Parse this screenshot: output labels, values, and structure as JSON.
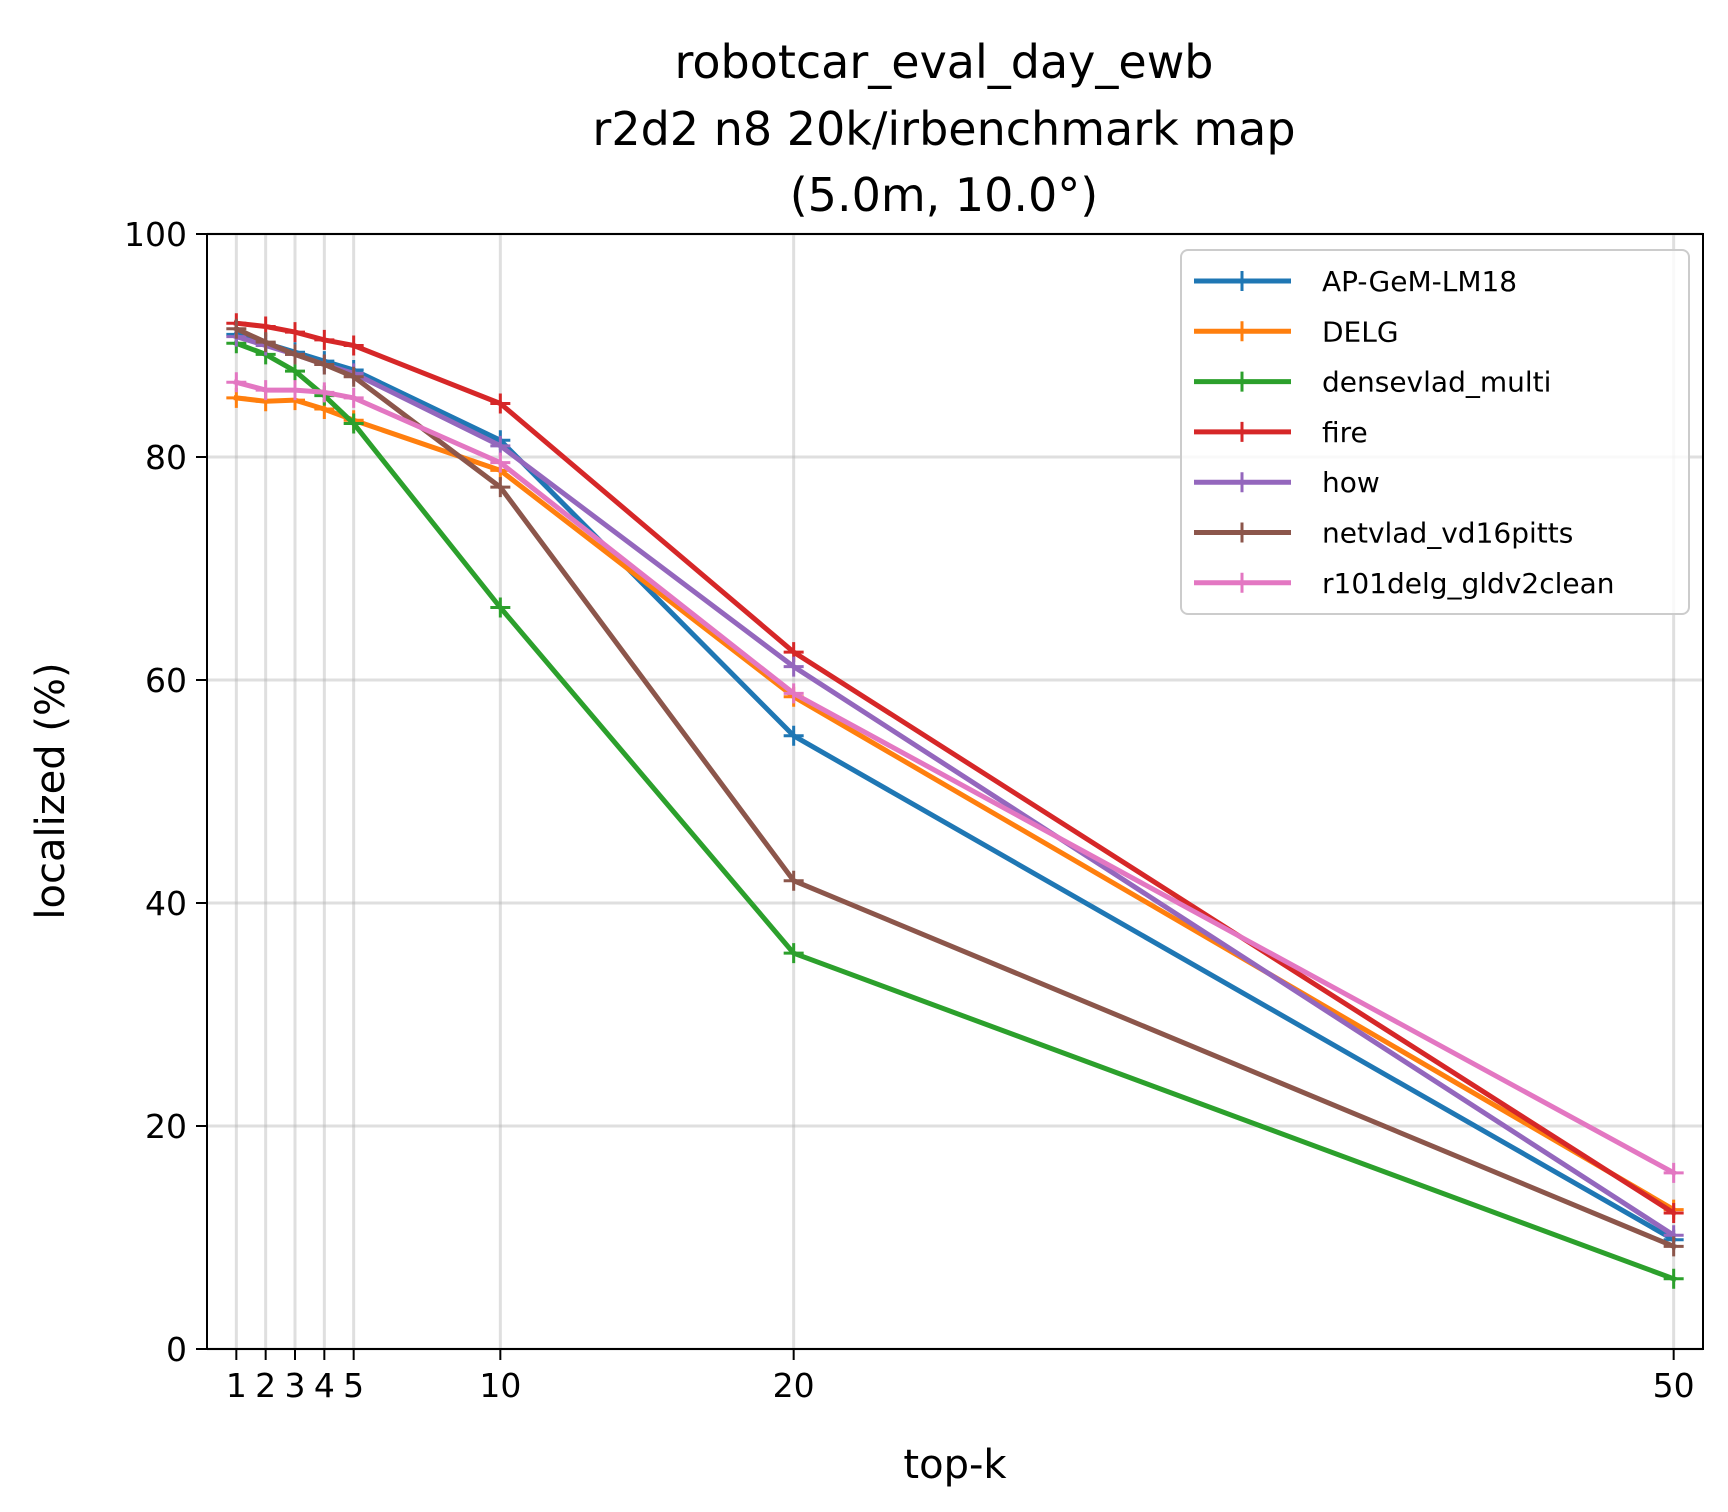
{
  "chart_data": {
    "type": "line",
    "title_lines": [
      "robotcar_eval_day_ewb",
      "r2d2 n8 20k/irbenchmark map",
      "(5.0m, 10.0°)"
    ],
    "xlabel": "top-k",
    "ylabel": "localized (%)",
    "x": [
      1,
      2,
      3,
      4,
      5,
      10,
      20,
      50
    ],
    "xticks": [
      1,
      2,
      3,
      4,
      5,
      10,
      20,
      50
    ],
    "xlim": [
      0,
      51
    ],
    "ylim": [
      0,
      100
    ],
    "yticks": [
      0,
      20,
      40,
      60,
      80,
      100
    ],
    "grid": true,
    "legend_position": "top-right",
    "series": [
      {
        "name": "AP-GeM-LM18",
        "color": "#1f77b4",
        "values": [
          91.0,
          90.2,
          89.4,
          88.6,
          87.8,
          81.5,
          55.0,
          9.8
        ]
      },
      {
        "name": "DELG",
        "color": "#ff7f0e",
        "values": [
          85.3,
          85.0,
          85.1,
          84.3,
          83.3,
          78.8,
          58.5,
          12.5
        ]
      },
      {
        "name": "densevlad_multi",
        "color": "#2ca02c",
        "values": [
          90.2,
          89.2,
          87.7,
          85.5,
          83.0,
          66.5,
          35.5,
          6.3
        ]
      },
      {
        "name": "fire",
        "color": "#d62728",
        "values": [
          92.0,
          91.7,
          91.2,
          90.5,
          90.0,
          84.8,
          62.5,
          12.2
        ]
      },
      {
        "name": "how",
        "color": "#9467bd",
        "values": [
          90.8,
          90.0,
          89.2,
          88.3,
          87.5,
          81.0,
          61.2,
          10.2
        ]
      },
      {
        "name": "netvlad_vd16pitts",
        "color": "#8c564b",
        "values": [
          91.5,
          90.3,
          89.2,
          88.3,
          87.2,
          77.3,
          42.0,
          9.2
        ]
      },
      {
        "name": "r101delg_gldv2clean",
        "color": "#e377c2",
        "values": [
          86.7,
          86.0,
          86.0,
          85.8,
          85.3,
          79.5,
          58.8,
          15.8
        ]
      }
    ]
  }
}
